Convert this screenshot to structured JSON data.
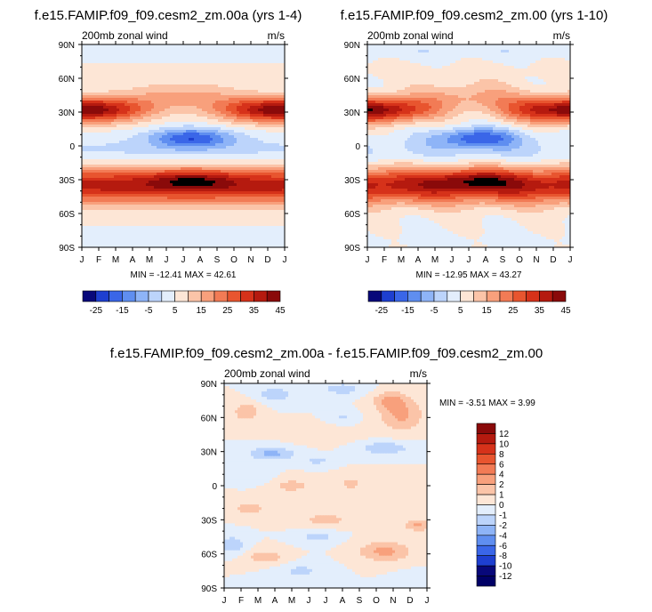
{
  "chart_data": [
    {
      "type": "heatmap",
      "title": "f.e15.FAMIP.f09_f09.cesm2_zm.00a (yrs 1-4)",
      "subtitle_left": "200mb zonal wind",
      "subtitle_right": "m/s",
      "x_ticks": [
        "J",
        "F",
        "M",
        "A",
        "M",
        "J",
        "J",
        "A",
        "S",
        "O",
        "N",
        "D",
        "J"
      ],
      "y_ticks": [
        "90N",
        "60N",
        "30N",
        "0",
        "30S",
        "60S",
        "90S"
      ],
      "ylim": [
        -90,
        90
      ],
      "stats": "MIN = -12.41 MAX =  42.61",
      "min": -12.41,
      "max": 42.61
    },
    {
      "type": "heatmap",
      "title": "f.e15.FAMIP.f09_f09.cesm2_zm.00 (yrs 1-10)",
      "subtitle_left": "200mb zonal wind",
      "subtitle_right": "m/s",
      "x_ticks": [
        "J",
        "F",
        "M",
        "A",
        "M",
        "J",
        "J",
        "A",
        "S",
        "O",
        "N",
        "D",
        "J"
      ],
      "y_ticks": [
        "90N",
        "60N",
        "30N",
        "0",
        "30S",
        "60S",
        "90S"
      ],
      "ylim": [
        -90,
        90
      ],
      "stats": "MIN = -12.95 MAX =  43.27",
      "min": -12.95,
      "max": 43.27
    },
    {
      "type": "heatmap",
      "title": "f.e15.FAMIP.f09_f09.cesm2_zm.00a - f.e15.FAMIP.f09_f09.cesm2_zm.00",
      "subtitle_left": "200mb zonal wind",
      "subtitle_right": "m/s",
      "x_ticks": [
        "J",
        "F",
        "M",
        "A",
        "M",
        "J",
        "J",
        "A",
        "S",
        "O",
        "N",
        "D",
        "J"
      ],
      "y_ticks": [
        "90N",
        "60N",
        "30N",
        "0",
        "30S",
        "60S",
        "90S"
      ],
      "ylim": [
        -90,
        90
      ],
      "stats": "MIN =  -3.51 MAX =   3.99",
      "min": -3.51,
      "max": 3.99
    }
  ],
  "colorbar_top": {
    "labels": [
      "-25",
      "-15",
      "-5",
      "5",
      "15",
      "25",
      "35",
      "45"
    ],
    "colors": [
      "#08087a",
      "#1e3fd0",
      "#3a66e8",
      "#5f8ef0",
      "#8eb4f7",
      "#bcd4fb",
      "#e3eefc",
      "#fde6d6",
      "#fbc4a8",
      "#f8a07c",
      "#f27b55",
      "#e8552f",
      "#d6321a",
      "#b51a0f",
      "#8a0a0a"
    ]
  },
  "colorbar_diff": {
    "labels": [
      "12",
      "10",
      "8",
      "6",
      "4",
      "2",
      "1",
      "0",
      "-1",
      "-2",
      "-4",
      "-6",
      "-8",
      "-10",
      "-12"
    ],
    "colors": [
      "#8a0a0a",
      "#b51a0f",
      "#d6321a",
      "#e8552f",
      "#f27b55",
      "#f8a07c",
      "#fbc4a8",
      "#fde6d6",
      "#e3eefc",
      "#bcd4fb",
      "#8eb4f7",
      "#5f8ef0",
      "#3a66e8",
      "#1e3fd0",
      "#08087a",
      "#000066"
    ]
  },
  "palette": {
    "sp": [
      "#08087a",
      "#1e3fd0",
      "#3a66e8",
      "#5f8ef0",
      "#8eb4f7",
      "#bcd4fb",
      "#e3eefc",
      "#fde6d6",
      "#fbc4a8",
      "#f8a07c",
      "#f27b55",
      "#e8552f",
      "#d6321a",
      "#b51a0f",
      "#8a0a0a"
    ],
    "dp": [
      "#000066",
      "#08087a",
      "#1e3fd0",
      "#3a66e8",
      "#5f8ef0",
      "#8eb4f7",
      "#bcd4fb",
      "#e3eefc",
      "#fde6d6",
      "#fbc4a8",
      "#f8a07c",
      "#f27b55",
      "#e8552f",
      "#d6321a",
      "#b51a0f",
      "#8a0a0a"
    ]
  }
}
